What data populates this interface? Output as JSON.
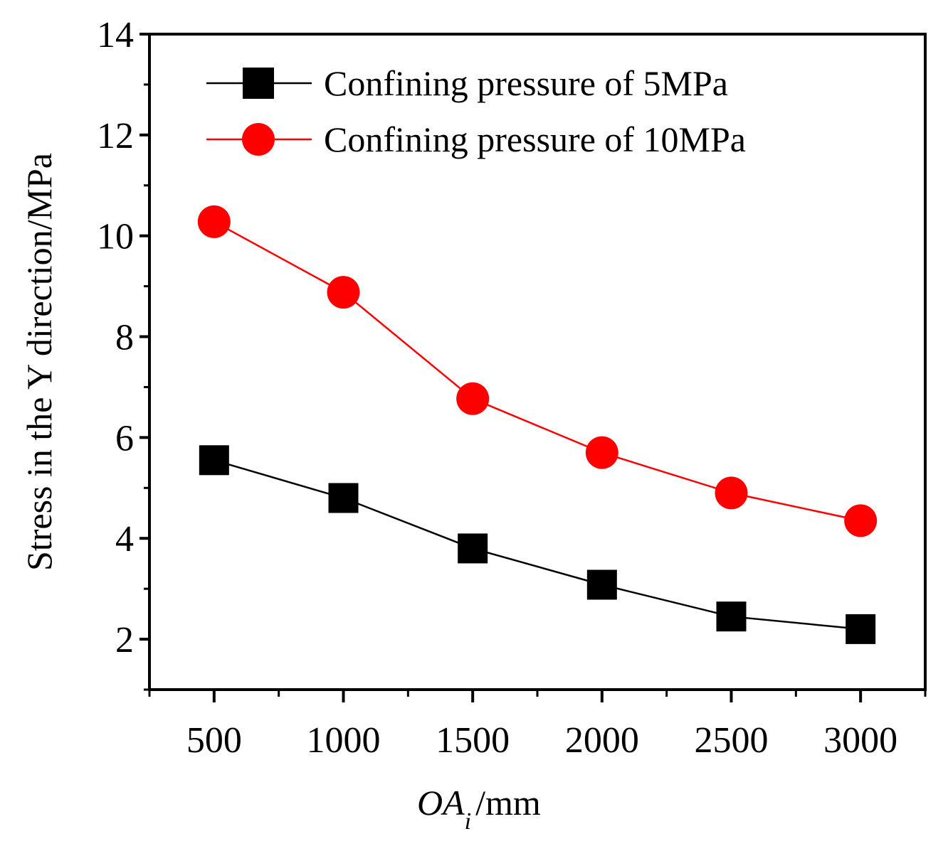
{
  "chart_data": {
    "type": "line",
    "title": "",
    "x": [
      500,
      1000,
      1500,
      2000,
      2500,
      3000
    ],
    "xticks": [
      "500",
      "1000",
      "1500",
      "2000",
      "2500",
      "3000"
    ],
    "yticks": [
      "2",
      "4",
      "6",
      "8",
      "10",
      "12",
      "14"
    ],
    "xlim": [
      250,
      3250
    ],
    "ylim": [
      1,
      14
    ],
    "xlabel": {
      "main": "OA",
      "subscript": "i",
      "unit": "/mm"
    },
    "ylabel": "Stress in the Y direction/MPa",
    "legend_position": "top-right",
    "series": [
      {
        "name": "Confining pressure of 5MPa",
        "marker": "square",
        "color": "#000000",
        "values": [
          5.55,
          4.8,
          3.8,
          3.08,
          2.45,
          2.2
        ]
      },
      {
        "name": "Confining pressure of 10MPa",
        "marker": "circle",
        "color": "#ff0000",
        "values": [
          10.28,
          8.88,
          6.77,
          5.7,
          4.9,
          4.35
        ]
      }
    ]
  }
}
